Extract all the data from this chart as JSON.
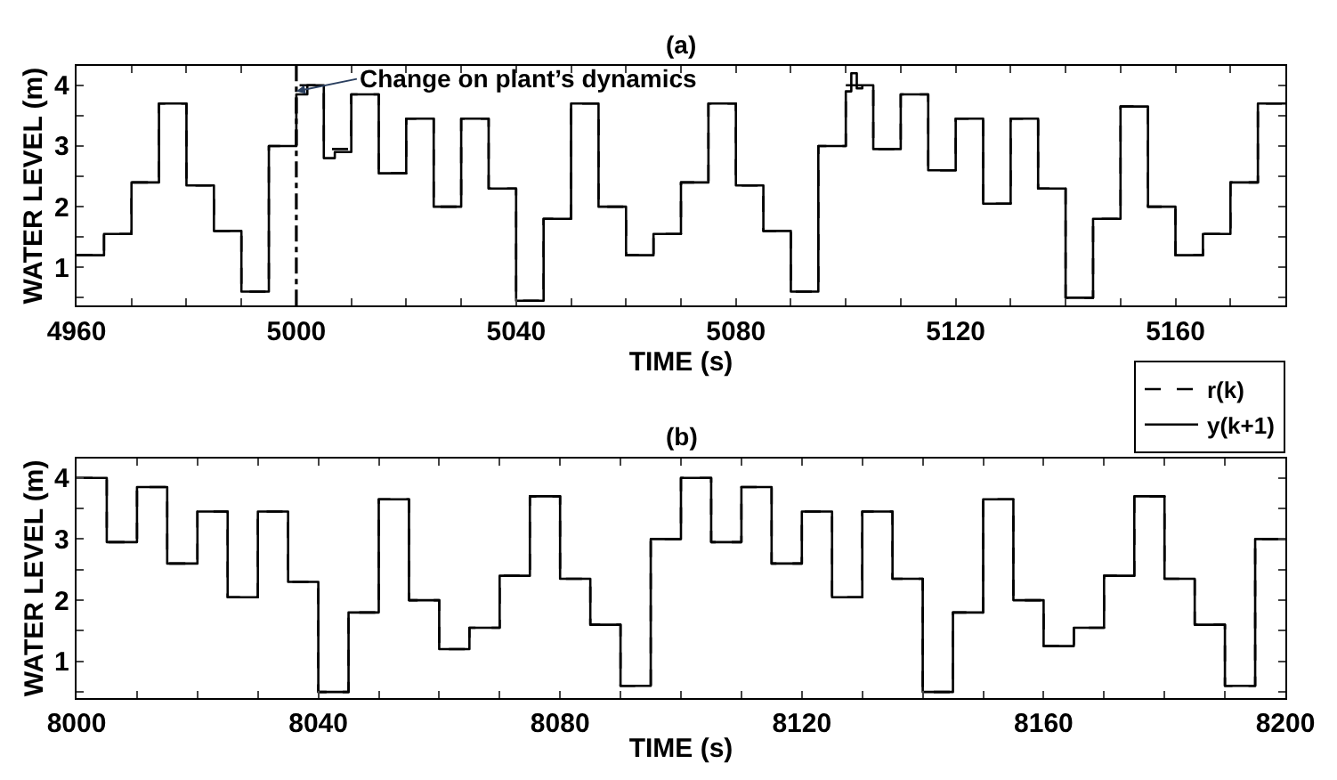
{
  "chart_data": [
    {
      "type": "step",
      "title": "(a)",
      "xlabel": "TIME (s)",
      "ylabel": "WATER LEVEL (m)",
      "x": [
        4960,
        4965,
        4970,
        4975,
        4980,
        4985,
        4990,
        4995,
        5000,
        5005,
        5010,
        5015,
        5020,
        5025,
        5030,
        5035,
        5040,
        5045,
        5050,
        5055,
        5060,
        5065,
        5070,
        5075,
        5080,
        5085,
        5090,
        5095,
        5100,
        5105,
        5110,
        5115,
        5120,
        5125,
        5130,
        5135,
        5140,
        5145,
        5150,
        5155,
        5160,
        5165,
        5170,
        5175,
        5180
      ],
      "series": [
        {
          "name": "r(k)",
          "color": "#000000",
          "line_style": "dashed",
          "values": [
            1.2,
            1.55,
            2.4,
            3.7,
            2.35,
            1.6,
            0.6,
            3.0,
            4.0,
            2.95,
            3.85,
            2.55,
            3.45,
            2.0,
            3.45,
            2.3,
            0.45,
            1.8,
            3.7,
            2.0,
            1.2,
            1.55,
            2.4,
            3.7,
            2.35,
            1.6,
            0.6,
            3.0,
            4.0,
            2.95,
            3.85,
            2.6,
            3.45,
            2.05,
            3.45,
            2.3,
            0.5,
            1.8,
            3.65,
            2.0,
            1.2,
            1.55,
            2.4,
            3.7,
            3.7
          ]
        },
        {
          "name": "y(k+1)",
          "color": "#000000",
          "line_style": "solid",
          "x": [
            4960,
            4965,
            4970,
            4975,
            4980,
            4985,
            4990,
            4995,
            5000,
            5002,
            5005,
            5007,
            5010,
            5015,
            5020,
            5025,
            5030,
            5035,
            5040,
            5045,
            5050,
            5055,
            5060,
            5065,
            5070,
            5075,
            5080,
            5085,
            5090,
            5095,
            5100,
            5101,
            5102,
            5103,
            5105,
            5110,
            5115,
            5120,
            5125,
            5130,
            5135,
            5140,
            5145,
            5150,
            5155,
            5160,
            5165,
            5170,
            5175,
            5180
          ],
          "values": [
            1.2,
            1.55,
            2.4,
            3.7,
            2.35,
            1.6,
            0.6,
            3.0,
            3.85,
            4.0,
            2.8,
            2.9,
            3.85,
            2.55,
            3.45,
            2.0,
            3.45,
            2.3,
            0.45,
            1.8,
            3.7,
            2.0,
            1.2,
            1.55,
            2.4,
            3.7,
            2.35,
            1.6,
            0.6,
            3.0,
            3.9,
            4.2,
            3.95,
            4.0,
            2.95,
            3.85,
            2.6,
            3.45,
            2.05,
            3.45,
            2.3,
            0.5,
            1.8,
            3.65,
            2.0,
            1.2,
            1.55,
            2.4,
            3.7,
            3.7
          ]
        }
      ],
      "xlim": [
        4960,
        5180
      ],
      "xticks": [
        4960,
        {
          "value": 4970,
          "label": null
        },
        {
          "value": 4980,
          "label": null
        },
        {
          "value": 4990,
          "label": null
        },
        5000,
        {
          "value": 5010,
          "label": null
        },
        {
          "value": 5020,
          "label": null
        },
        {
          "value": 5030,
          "label": null
        },
        5040,
        {
          "value": 5050,
          "label": null
        },
        {
          "value": 5060,
          "label": null
        },
        {
          "value": 5070,
          "label": null
        },
        5080,
        {
          "value": 5090,
          "label": null
        },
        {
          "value": 5100,
          "label": null
        },
        {
          "value": 5110,
          "label": null
        },
        5120,
        {
          "value": 5130,
          "label": null
        },
        {
          "value": 5140,
          "label": null
        },
        {
          "value": 5150,
          "label": null
        },
        5160,
        {
          "value": 5170,
          "label": null
        }
      ],
      "ylim": [
        0.37,
        4.32
      ],
      "yticks": [
        {
          "value": 0.5,
          "label": null
        },
        1,
        {
          "value": 1.5,
          "label": null
        },
        2,
        {
          "value": 2.5,
          "label": null
        },
        3,
        {
          "value": 3.5,
          "label": null
        },
        4
      ],
      "ref_lines": [
        {
          "axis": "x",
          "value": 5000,
          "label": null,
          "color": "#000000",
          "line_style": "dashdot"
        }
      ],
      "annotations": [
        {
          "text": "Change on plant’s dynamics",
          "x": 5000,
          "y": 3.9
        }
      ],
      "legend": "bottom right"
    },
    {
      "type": "step",
      "title": "(b)",
      "xlabel": "TIME (s)",
      "ylabel": "WATER LEVEL (m)",
      "x": [
        8000,
        8005,
        8010,
        8015,
        8020,
        8025,
        8030,
        8035,
        8040,
        8045,
        8050,
        8055,
        8060,
        8065,
        8070,
        8075,
        8080,
        8085,
        8090,
        8095,
        8100,
        8105,
        8110,
        8115,
        8120,
        8125,
        8130,
        8135,
        8140,
        8145,
        8150,
        8155,
        8160,
        8165,
        8170,
        8175,
        8180,
        8185,
        8190,
        8195,
        8200
      ],
      "series": [
        {
          "color": "#000000",
          "line_style": "dashed",
          "values": [
            4.0,
            2.95,
            3.85,
            2.6,
            3.45,
            2.05,
            3.45,
            2.3,
            0.5,
            1.8,
            3.65,
            2.0,
            1.2,
            1.55,
            2.4,
            3.7,
            2.35,
            1.6,
            0.6,
            3.0,
            4.0,
            2.95,
            3.85,
            2.6,
            3.45,
            2.05,
            3.45,
            2.35,
            0.5,
            1.8,
            3.65,
            2.0,
            1.25,
            1.55,
            2.4,
            3.7,
            2.35,
            1.6,
            0.6,
            3.0,
            3.0
          ]
        },
        {
          "color": "#000000",
          "line_style": "solid",
          "values": [
            4.0,
            2.95,
            3.85,
            2.6,
            3.45,
            2.05,
            3.45,
            2.3,
            0.5,
            1.8,
            3.65,
            2.0,
            1.2,
            1.55,
            2.4,
            3.7,
            2.35,
            1.6,
            0.6,
            3.0,
            4.0,
            2.95,
            3.85,
            2.6,
            3.45,
            2.05,
            3.45,
            2.35,
            0.5,
            1.8,
            3.65,
            2.0,
            1.25,
            1.55,
            2.4,
            3.7,
            2.35,
            1.6,
            0.6,
            3.0,
            3.0
          ]
        }
      ],
      "xlim": [
        8000,
        8200
      ],
      "xticks": [
        8000,
        {
          "value": 8010,
          "label": null
        },
        {
          "value": 8020,
          "label": null
        },
        {
          "value": 8030,
          "label": null
        },
        8040,
        {
          "value": 8050,
          "label": null
        },
        {
          "value": 8060,
          "label": null
        },
        {
          "value": 8070,
          "label": null
        },
        8080,
        {
          "value": 8090,
          "label": null
        },
        {
          "value": 8100,
          "label": null
        },
        {
          "value": 8110,
          "label": null
        },
        8120,
        {
          "value": 8130,
          "label": null
        },
        {
          "value": 8140,
          "label": null
        },
        {
          "value": 8150,
          "label": null
        },
        8160,
        {
          "value": 8170,
          "label": null
        },
        {
          "value": 8180,
          "label": null
        },
        {
          "value": 8190,
          "label": null
        },
        8200
      ],
      "ylim": [
        0.4,
        4.32
      ],
      "yticks": [
        {
          "value": 0.5,
          "label": null
        },
        1,
        {
          "value": 1.5,
          "label": null
        },
        2,
        {
          "value": 2.5,
          "label": null
        },
        3,
        {
          "value": 3.5,
          "label": null
        },
        4
      ]
    }
  ]
}
